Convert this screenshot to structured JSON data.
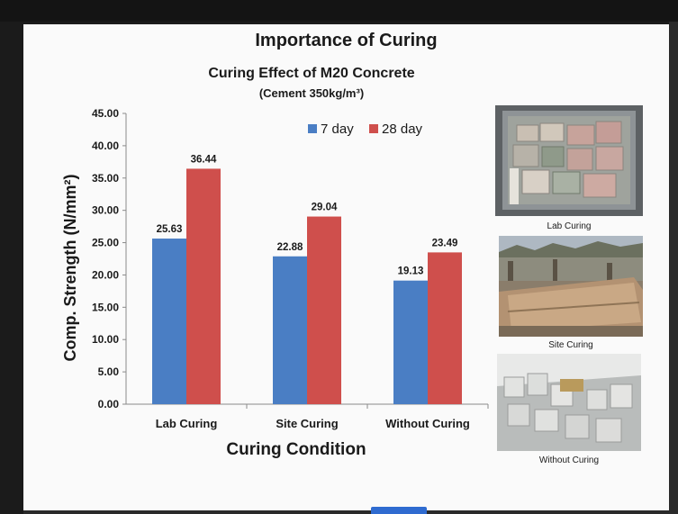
{
  "slide": {
    "title": "Importance of Curing"
  },
  "chart_data": {
    "type": "bar",
    "title": "Curing Effect of M20 Concrete",
    "subtitle": "(Cement 350kg/m³)",
    "xlabel": "Curing  Condition",
    "ylabel": "Comp. Strength (N/mm²)",
    "categories": [
      "Lab Curing",
      "Site Curing",
      "Without Curing"
    ],
    "series": [
      {
        "name": "7 day",
        "color": "#4a7ec4",
        "values": [
          25.63,
          22.88,
          19.13
        ]
      },
      {
        "name": "28 day",
        "color": "#cf4f4c",
        "values": [
          36.44,
          29.04,
          23.49
        ]
      }
    ],
    "data_labels": [
      [
        "25.63",
        "22.88",
        "19.13"
      ],
      [
        "36.44",
        "29.04",
        "23.49"
      ]
    ],
    "ylim": [
      0,
      45
    ],
    "yticks": [
      "0.00",
      "5.00",
      "10.00",
      "15.00",
      "20.00",
      "25.00",
      "30.00",
      "35.00",
      "40.00",
      "45.00"
    ],
    "grid": false,
    "legend_position": "top-center"
  },
  "photos": [
    {
      "caption": "Lab Curing"
    },
    {
      "caption": "Site Curing"
    },
    {
      "caption": "Without Curing"
    }
  ]
}
